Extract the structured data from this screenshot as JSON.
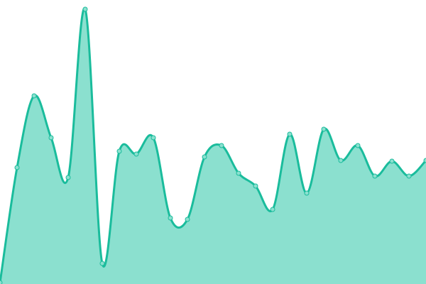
{
  "chart_data": {
    "type": "area",
    "smooth": true,
    "x": [
      0,
      1,
      2,
      3,
      4,
      5,
      6,
      7,
      8,
      9,
      10,
      11,
      12,
      13,
      14,
      15,
      16,
      17,
      18,
      19,
      20,
      21,
      22,
      23,
      24,
      25
    ],
    "values": [
      2,
      164,
      265,
      206,
      150,
      387,
      29,
      187,
      183,
      206,
      93,
      91,
      179,
      195,
      156,
      138,
      105,
      211,
      128,
      218,
      174,
      195,
      152,
      173,
      152,
      174
    ],
    "ylim": [
      0,
      400
    ],
    "grid": false,
    "axes": false,
    "legend": "none",
    "colors": {
      "line": "#1abc9c",
      "fill": "#8be0cf",
      "marker_fill": "#8be0cf"
    }
  }
}
